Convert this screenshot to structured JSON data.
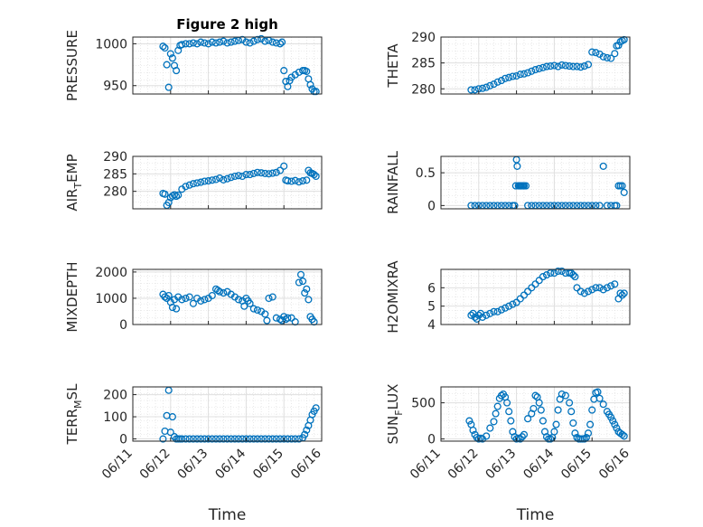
{
  "figure": {
    "title": "Figure 2 high",
    "xlabel": "Time",
    "marker_color": "#0072BD"
  },
  "chart_data": [
    {
      "type": "scatter",
      "title": "Figure 2 high",
      "ylabel": "PRESSURE",
      "xlabel": "",
      "show_xticks": false,
      "ylim": [
        940,
        1008
      ],
      "yticks": [
        950,
        1000
      ],
      "grid": true,
      "x": [
        11.8,
        11.85,
        11.9,
        11.95,
        12.0,
        12.05,
        12.1,
        12.15,
        12.2,
        12.25,
        12.3,
        12.4,
        12.5,
        12.6,
        12.7,
        12.8,
        12.9,
        13.0,
        13.1,
        13.2,
        13.3,
        13.4,
        13.5,
        13.6,
        13.7,
        13.8,
        13.9,
        14.0,
        14.1,
        14.2,
        14.3,
        14.4,
        14.5,
        14.6,
        14.7,
        14.8,
        14.9,
        14.95,
        15.0,
        15.05,
        15.1,
        15.15,
        15.2,
        15.3,
        15.4,
        15.5,
        15.55,
        15.6,
        15.65,
        15.7,
        15.75,
        15.8,
        15.85
      ],
      "y": [
        997,
        995,
        975,
        948,
        988,
        983,
        974,
        968,
        992,
        998,
        999,
        1000,
        1000,
        1001,
        1000,
        1002,
        1001,
        1000,
        1002,
        1001,
        1002,
        1003,
        1001,
        1002,
        1003,
        1004,
        1005,
        1002,
        1001,
        1003,
        1005,
        1006,
        1003,
        1004,
        1002,
        1001,
        1000,
        1002,
        968,
        955,
        949,
        956,
        960,
        963,
        966,
        968,
        968,
        967,
        958,
        951,
        946,
        943,
        943
      ]
    },
    {
      "type": "scatter",
      "title": "",
      "ylabel": "THETA",
      "xlabel": "",
      "show_xticks": false,
      "ylim": [
        279,
        290
      ],
      "yticks": [
        280,
        285,
        290
      ],
      "grid": true,
      "x": [
        11.8,
        11.9,
        12.0,
        12.1,
        12.2,
        12.3,
        12.4,
        12.5,
        12.6,
        12.7,
        12.8,
        12.9,
        13.0,
        13.1,
        13.2,
        13.3,
        13.4,
        13.5,
        13.6,
        13.7,
        13.8,
        13.9,
        14.0,
        14.1,
        14.2,
        14.3,
        14.4,
        14.5,
        14.6,
        14.7,
        14.8,
        14.9,
        15.0,
        15.1,
        15.2,
        15.3,
        15.4,
        15.5,
        15.6,
        15.65,
        15.7,
        15.75,
        15.8,
        15.85
      ],
      "y": [
        279.8,
        279.8,
        280.0,
        280.1,
        280.3,
        280.6,
        280.9,
        281.3,
        281.6,
        282.0,
        282.2,
        282.4,
        282.5,
        282.8,
        282.9,
        283.1,
        283.4,
        283.7,
        283.9,
        284.1,
        284.3,
        284.4,
        284.5,
        284.3,
        284.6,
        284.5,
        284.4,
        284.3,
        284.3,
        284.2,
        284.4,
        284.7,
        287.1,
        287.0,
        286.7,
        286.2,
        286.0,
        285.9,
        286.8,
        288.3,
        288.4,
        289.1,
        289.3,
        289.5
      ]
    },
    {
      "type": "scatter",
      "title": "",
      "ylabel": "AIR_TEMP",
      "ylabel_main": "AIR",
      "ylabel_sub": "T",
      "ylabel_rest": "EMP",
      "xlabel": "",
      "show_xticks": false,
      "ylim": [
        275,
        290
      ],
      "yticks": [
        280,
        285,
        290
      ],
      "grid": true,
      "x": [
        11.8,
        11.85,
        11.9,
        11.95,
        12.0,
        12.05,
        12.1,
        12.15,
        12.2,
        12.3,
        12.4,
        12.5,
        12.6,
        12.7,
        12.8,
        12.9,
        13.0,
        13.1,
        13.2,
        13.3,
        13.4,
        13.5,
        13.6,
        13.7,
        13.8,
        13.9,
        14.0,
        14.1,
        14.2,
        14.3,
        14.4,
        14.5,
        14.6,
        14.7,
        14.8,
        14.9,
        15.0,
        15.05,
        15.1,
        15.2,
        15.3,
        15.4,
        15.5,
        15.6,
        15.65,
        15.7,
        15.75,
        15.8,
        15.85
      ],
      "y": [
        279.4,
        279.2,
        276.0,
        276.8,
        278.2,
        278.7,
        279.0,
        278.6,
        278.9,
        280.6,
        281.4,
        281.8,
        282.2,
        282.4,
        282.6,
        282.9,
        283.0,
        283.2,
        283.4,
        283.8,
        283.3,
        283.6,
        284.0,
        284.3,
        284.5,
        284.3,
        284.8,
        284.8,
        285.1,
        285.4,
        285.3,
        285.1,
        285.0,
        285.2,
        285.4,
        286.0,
        287.2,
        283.2,
        283.0,
        282.9,
        283.1,
        282.7,
        283.0,
        283.2,
        286.0,
        285.3,
        285.1,
        284.8,
        284.3
      ]
    },
    {
      "type": "scatter",
      "title": "",
      "ylabel": "RAINFALL",
      "xlabel": "",
      "show_xticks": false,
      "ylim": [
        -0.05,
        0.75
      ],
      "yticks": [
        0,
        0.5
      ],
      "grid": true,
      "x": [
        11.8,
        11.9,
        12.0,
        12.1,
        12.2,
        12.3,
        12.4,
        12.5,
        12.6,
        12.7,
        12.8,
        12.9,
        12.95,
        12.98,
        13.0,
        13.02,
        13.05,
        13.08,
        13.1,
        13.12,
        13.15,
        13.18,
        13.2,
        13.25,
        13.3,
        13.4,
        13.5,
        13.6,
        13.7,
        13.8,
        13.9,
        14.0,
        14.1,
        14.2,
        14.3,
        14.4,
        14.5,
        14.6,
        14.7,
        14.8,
        14.9,
        15.0,
        15.1,
        15.2,
        15.3,
        15.4,
        15.5,
        15.6,
        15.65,
        15.7,
        15.75,
        15.8,
        15.85
      ],
      "y": [
        0,
        0,
        0,
        0,
        0,
        0,
        0,
        0,
        0,
        0,
        0,
        0,
        0,
        0.3,
        0.7,
        0.6,
        0.3,
        0.3,
        0.3,
        0.3,
        0.3,
        0.3,
        0.3,
        0.3,
        0,
        0,
        0,
        0,
        0,
        0,
        0,
        0,
        0,
        0,
        0,
        0,
        0,
        0,
        0,
        0,
        0,
        0,
        0,
        0,
        0.6,
        0,
        0,
        0,
        0,
        0.3,
        0.3,
        0.3,
        0.2
      ]
    },
    {
      "type": "scatter",
      "title": "",
      "ylabel": "MIXDEPTH",
      "xlabel": "",
      "show_xticks": false,
      "ylim": [
        0,
        2100
      ],
      "yticks": [
        0,
        1000,
        2000
      ],
      "grid": true,
      "x": [
        11.8,
        11.85,
        11.9,
        11.95,
        12.0,
        12.05,
        12.1,
        12.15,
        12.2,
        12.3,
        12.4,
        12.5,
        12.6,
        12.7,
        12.8,
        12.9,
        13.0,
        13.1,
        13.2,
        13.25,
        13.3,
        13.4,
        13.5,
        13.6,
        13.7,
        13.8,
        13.9,
        13.95,
        14.0,
        14.05,
        14.1,
        14.2,
        14.3,
        14.4,
        14.5,
        14.55,
        14.6,
        14.7,
        14.8,
        14.9,
        14.95,
        15.0,
        15.05,
        15.1,
        15.2,
        15.3,
        15.4,
        15.45,
        15.5,
        15.55,
        15.6,
        15.65,
        15.7,
        15.75,
        15.8
      ],
      "y": [
        1150,
        1050,
        1000,
        1100,
        850,
        650,
        950,
        600,
        1050,
        950,
        1000,
        1050,
        800,
        1000,
        900,
        950,
        1000,
        1100,
        1350,
        1300,
        1250,
        1200,
        1250,
        1150,
        1050,
        950,
        900,
        700,
        1000,
        900,
        800,
        600,
        550,
        500,
        400,
        150,
        1000,
        1050,
        250,
        200,
        150,
        300,
        200,
        250,
        250,
        100,
        1600,
        1900,
        1650,
        1200,
        1350,
        950,
        300,
        200,
        100
      ]
    },
    {
      "type": "scatter",
      "title": "",
      "ylabel": "H2OMIXRA",
      "xlabel": "",
      "show_xticks": false,
      "ylim": [
        4,
        7
      ],
      "yticks": [
        4,
        5,
        6
      ],
      "grid": true,
      "x": [
        11.8,
        11.85,
        11.9,
        11.95,
        12.0,
        12.05,
        12.1,
        12.2,
        12.3,
        12.4,
        12.5,
        12.6,
        12.7,
        12.8,
        12.9,
        13.0,
        13.1,
        13.2,
        13.3,
        13.4,
        13.5,
        13.6,
        13.7,
        13.8,
        13.9,
        14.0,
        14.1,
        14.2,
        14.3,
        14.4,
        14.45,
        14.5,
        14.55,
        14.6,
        14.7,
        14.8,
        14.9,
        15.0,
        15.1,
        15.2,
        15.3,
        15.4,
        15.5,
        15.6,
        15.7,
        15.75,
        15.8,
        15.85
      ],
      "y": [
        4.5,
        4.6,
        4.4,
        4.3,
        4.5,
        4.6,
        4.4,
        4.5,
        4.6,
        4.7,
        4.7,
        4.8,
        4.9,
        5.0,
        5.1,
        5.2,
        5.4,
        5.6,
        5.8,
        6.0,
        6.2,
        6.4,
        6.6,
        6.7,
        6.8,
        6.8,
        6.9,
        6.9,
        6.8,
        6.8,
        6.8,
        6.7,
        6.6,
        6.0,
        5.8,
        5.7,
        5.8,
        5.9,
        6.0,
        6.0,
        5.9,
        6.0,
        6.1,
        6.2,
        5.4,
        5.7,
        5.6,
        5.7
      ]
    },
    {
      "type": "scatter",
      "title": "",
      "ylabel": "TERR_MSL",
      "ylabel_main": "TERR",
      "ylabel_sub": "M",
      "ylabel_rest": "SL",
      "xlabel": "Time",
      "show_xticks": true,
      "ylim": [
        -10,
        235
      ],
      "yticks": [
        0,
        100,
        200
      ],
      "grid": true,
      "xticks": [
        11,
        12,
        13,
        14,
        15,
        16
      ],
      "xticklabels": [
        "06/11",
        "06/12",
        "06/13",
        "06/14",
        "06/15",
        "06/16"
      ],
      "x": [
        11.8,
        11.85,
        11.9,
        11.95,
        12.0,
        12.05,
        12.1,
        12.15,
        12.2,
        12.25,
        12.3,
        12.4,
        12.5,
        12.6,
        12.7,
        12.8,
        12.9,
        13.0,
        13.1,
        13.2,
        13.3,
        13.4,
        13.5,
        13.6,
        13.7,
        13.8,
        13.9,
        14.0,
        14.1,
        14.2,
        14.3,
        14.4,
        14.5,
        14.6,
        14.7,
        14.8,
        14.9,
        15.0,
        15.1,
        15.2,
        15.3,
        15.4,
        15.5,
        15.55,
        15.6,
        15.65,
        15.7,
        15.75,
        15.8,
        15.85
      ],
      "y": [
        0,
        35,
        105,
        220,
        30,
        100,
        10,
        0,
        0,
        0,
        0,
        0,
        0,
        0,
        0,
        0,
        0,
        0,
        0,
        0,
        0,
        0,
        0,
        0,
        0,
        0,
        0,
        0,
        0,
        0,
        0,
        0,
        0,
        0,
        0,
        0,
        0,
        0,
        0,
        0,
        0,
        0,
        5,
        20,
        40,
        60,
        85,
        110,
        125,
        140
      ]
    },
    {
      "type": "scatter",
      "title": "",
      "ylabel": "SUN_FLUX",
      "ylabel_main": "SUN",
      "ylabel_sub": "F",
      "ylabel_rest": "LUX",
      "xlabel": "Time",
      "show_xticks": true,
      "ylim": [
        -30,
        720
      ],
      "yticks": [
        0,
        500
      ],
      "grid": true,
      "xticks": [
        11,
        12,
        13,
        14,
        15,
        16
      ],
      "xticklabels": [
        "06/11",
        "06/12",
        "06/13",
        "06/14",
        "06/15",
        "06/16"
      ],
      "x": [
        11.75,
        11.8,
        11.85,
        11.9,
        11.95,
        12.0,
        12.05,
        12.1,
        12.2,
        12.3,
        12.4,
        12.45,
        12.5,
        12.55,
        12.6,
        12.65,
        12.7,
        12.75,
        12.8,
        12.85,
        12.9,
        12.95,
        13.0,
        13.05,
        13.1,
        13.15,
        13.2,
        13.3,
        13.4,
        13.45,
        13.5,
        13.55,
        13.6,
        13.65,
        13.7,
        13.75,
        13.8,
        13.85,
        13.9,
        13.95,
        14.0,
        14.05,
        14.1,
        14.15,
        14.2,
        14.3,
        14.4,
        14.45,
        14.5,
        14.55,
        14.6,
        14.65,
        14.7,
        14.75,
        14.8,
        14.85,
        14.9,
        14.95,
        15.0,
        15.05,
        15.1,
        15.15,
        15.2,
        15.3,
        15.4,
        15.45,
        15.5,
        15.55,
        15.6,
        15.65,
        15.7,
        15.75,
        15.8,
        15.85
      ],
      "y": [
        250,
        200,
        120,
        60,
        20,
        0,
        10,
        0,
        40,
        150,
        240,
        350,
        450,
        560,
        600,
        620,
        580,
        500,
        380,
        250,
        100,
        30,
        0,
        10,
        0,
        30,
        60,
        280,
        350,
        420,
        600,
        580,
        500,
        400,
        250,
        100,
        30,
        0,
        0,
        20,
        100,
        200,
        400,
        550,
        620,
        600,
        500,
        380,
        220,
        80,
        20,
        0,
        0,
        0,
        0,
        20,
        80,
        200,
        400,
        550,
        640,
        650,
        560,
        480,
        380,
        340,
        300,
        250,
        200,
        150,
        100,
        80,
        60,
        40
      ]
    }
  ]
}
